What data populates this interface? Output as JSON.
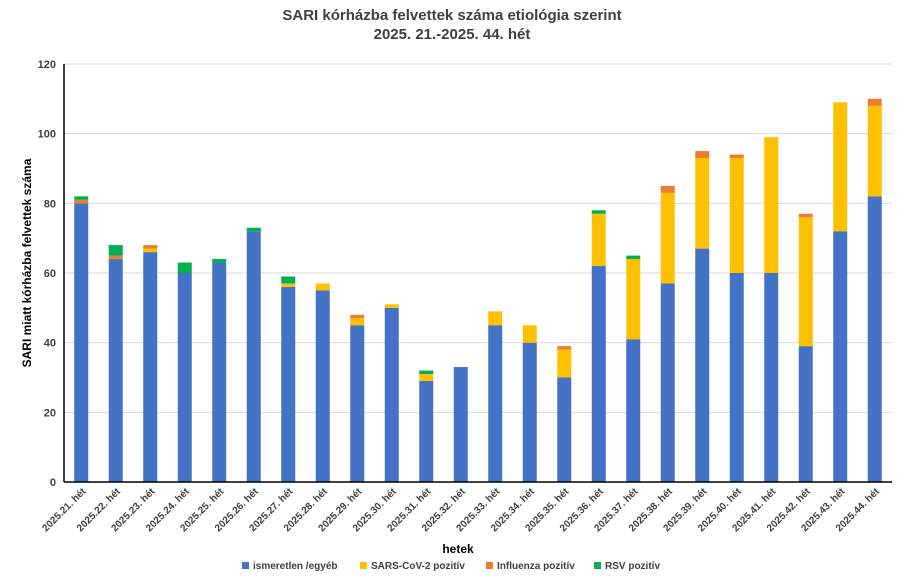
{
  "chart_data": {
    "type": "bar",
    "stacked": true,
    "title": "SARI kórházba felvettek száma etiológia szerint",
    "subtitle": "2025. 21.-2025. 44. hét",
    "xlabel": "hetek",
    "ylabel": "SARI miatt kórházba felvettek száma",
    "ylim": [
      0,
      120
    ],
    "yticks": [
      0,
      20,
      40,
      60,
      80,
      100,
      120
    ],
    "grid": true,
    "legend_position": "bottom",
    "categories": [
      "2025.21. hét",
      "2025.22. hét",
      "2025.23. hét",
      "2025.24. hét",
      "2025.25. hét",
      "2025.26. hét",
      "2025.27. hét",
      "2025.28. hét",
      "2025.29. hét",
      "2025.30. hét",
      "2025.31. hét",
      "2025.32. hét",
      "2025.33. hét",
      "2025.34. hét",
      "2025.35. hét",
      "2025.36. hét",
      "2025.37. hét",
      "2025.38. hét",
      "2025.39. hét",
      "2025.40. hét",
      "2025.41. hét",
      "2025.42. hét",
      "2025.43. hét",
      "2025.44. hét"
    ],
    "series": [
      {
        "name": "ismeretlen /egyéb",
        "color": "#4472C4",
        "values": [
          80,
          64,
          66,
          60,
          63,
          72,
          56,
          55,
          45,
          50,
          29,
          33,
          45,
          40,
          30,
          62,
          41,
          57,
          67,
          60,
          60,
          39,
          72,
          82
        ]
      },
      {
        "name": "SARS-CoV-2 pozitív",
        "color": "#FFC000",
        "values": [
          0,
          0,
          1,
          0,
          0,
          0,
          1,
          2,
          2,
          1,
          2,
          0,
          4,
          5,
          8,
          15,
          23,
          26,
          26,
          33,
          39,
          37,
          37,
          26
        ]
      },
      {
        "name": "Influenza pozitív",
        "color": "#ED7D31",
        "values": [
          1,
          1,
          1,
          0,
          0,
          0,
          0,
          0,
          1,
          0,
          0,
          0,
          0,
          0,
          1,
          0,
          0,
          2,
          2,
          1,
          0,
          1,
          0,
          2
        ]
      },
      {
        "name": "RSV pozitív",
        "color": "#00B050",
        "values": [
          1,
          3,
          0,
          3,
          1,
          1,
          2,
          0,
          0,
          0,
          1,
          0,
          0,
          0,
          0,
          1,
          1,
          0,
          0,
          0,
          0,
          0,
          0,
          0
        ]
      }
    ]
  }
}
